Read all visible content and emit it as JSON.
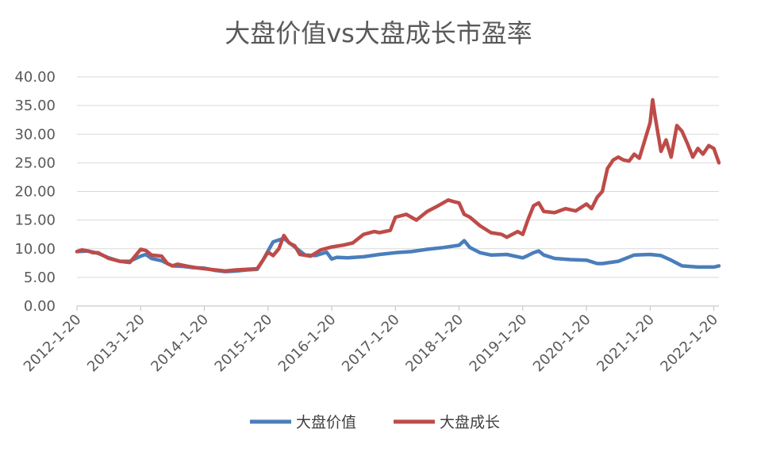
{
  "chart_data": {
    "type": "line",
    "title": "大盘价值vs大盘成长市盈率",
    "xlabel": "",
    "ylabel": "",
    "ylim": [
      0,
      40
    ],
    "yticks": [
      "0.00",
      "5.00",
      "10.00",
      "15.00",
      "20.00",
      "25.00",
      "30.00",
      "35.00",
      "40.00"
    ],
    "xticks": [
      "2012-1-20",
      "2013-1-20",
      "2014-1-20",
      "2015-1-20",
      "2016-1-20",
      "2017-1-20",
      "2018-1-20",
      "2019-1-20",
      "2020-1-20",
      "2021-1-20",
      "2022-1-20"
    ],
    "grid": "horizontal",
    "legend_position": "bottom",
    "series": [
      {
        "name": "大盘价值",
        "color": "#4a7ebb",
        "x": [
          2012.0,
          2012.17,
          2012.33,
          2012.5,
          2012.67,
          2012.83,
          2013.0,
          2013.08,
          2013.17,
          2013.33,
          2013.42,
          2013.5,
          2013.67,
          2013.83,
          2014.0,
          2014.17,
          2014.33,
          2014.5,
          2014.67,
          2014.83,
          2014.92,
          2015.0,
          2015.08,
          2015.25,
          2015.42,
          2015.58,
          2015.75,
          2015.92,
          2016.0,
          2016.08,
          2016.25,
          2016.5,
          2016.75,
          2017.0,
          2017.25,
          2017.5,
          2017.75,
          2018.0,
          2018.08,
          2018.17,
          2018.33,
          2018.5,
          2018.75,
          2019.0,
          2019.08,
          2019.17,
          2019.25,
          2019.33,
          2019.5,
          2019.75,
          2020.0,
          2020.17,
          2020.25,
          2020.5,
          2020.75,
          2021.0,
          2021.17,
          2021.33,
          2021.5,
          2021.75,
          2022.0,
          2022.08
        ],
        "values": [
          9.5,
          9.6,
          9.2,
          8.4,
          7.8,
          7.8,
          8.7,
          9.0,
          8.3,
          7.9,
          7.4,
          7.0,
          6.9,
          6.7,
          6.6,
          6.2,
          6.0,
          6.1,
          6.3,
          6.4,
          8.0,
          9.6,
          11.2,
          11.8,
          10.3,
          8.9,
          8.8,
          9.4,
          8.2,
          8.5,
          8.4,
          8.6,
          9.0,
          9.3,
          9.5,
          9.9,
          10.2,
          10.6,
          11.4,
          10.2,
          9.3,
          8.9,
          9.0,
          8.4,
          8.8,
          9.3,
          9.6,
          8.9,
          8.3,
          8.1,
          8.0,
          7.4,
          7.4,
          7.8,
          8.9,
          9.0,
          8.8,
          8.0,
          7.0,
          6.8,
          6.8,
          7.0
        ]
      },
      {
        "name": "大盘成长",
        "color": "#be4b48",
        "x": [
          2012.0,
          2012.08,
          2012.17,
          2012.25,
          2012.33,
          2012.5,
          2012.67,
          2012.83,
          2013.0,
          2013.08,
          2013.17,
          2013.33,
          2013.42,
          2013.5,
          2013.58,
          2013.75,
          2013.92,
          2014.0,
          2014.17,
          2014.33,
          2014.5,
          2014.67,
          2014.83,
          2014.92,
          2015.0,
          2015.08,
          2015.17,
          2015.25,
          2015.33,
          2015.42,
          2015.5,
          2015.67,
          2015.83,
          2016.0,
          2016.17,
          2016.33,
          2016.5,
          2016.67,
          2016.75,
          2016.92,
          2017.0,
          2017.17,
          2017.33,
          2017.5,
          2017.67,
          2017.83,
          2017.92,
          2018.0,
          2018.08,
          2018.17,
          2018.33,
          2018.5,
          2018.67,
          2018.75,
          2018.92,
          2019.0,
          2019.08,
          2019.17,
          2019.25,
          2019.33,
          2019.5,
          2019.67,
          2019.83,
          2020.0,
          2020.08,
          2020.17,
          2020.25,
          2020.33,
          2020.42,
          2020.5,
          2020.58,
          2020.67,
          2020.75,
          2020.83,
          2021.0,
          2021.04,
          2021.08,
          2021.17,
          2021.25,
          2021.33,
          2021.42,
          2021.5,
          2021.58,
          2021.67,
          2021.75,
          2021.83,
          2021.92,
          2022.0,
          2022.08
        ],
        "values": [
          9.5,
          9.8,
          9.6,
          9.3,
          9.3,
          8.3,
          7.8,
          7.6,
          9.9,
          9.7,
          8.9,
          8.7,
          7.4,
          7.0,
          7.3,
          6.9,
          6.6,
          6.5,
          6.3,
          6.1,
          6.3,
          6.4,
          6.5,
          8.0,
          9.4,
          8.8,
          10.0,
          12.3,
          11.0,
          10.5,
          9.0,
          8.7,
          9.8,
          10.3,
          10.6,
          11.0,
          12.5,
          13.0,
          12.8,
          13.2,
          15.5,
          16.0,
          15.0,
          16.5,
          17.5,
          18.5,
          18.2,
          18.0,
          16.0,
          15.5,
          14.0,
          12.8,
          12.5,
          12.0,
          13.0,
          12.5,
          15.0,
          17.5,
          18.0,
          16.5,
          16.3,
          17.0,
          16.6,
          17.8,
          17.0,
          19.0,
          20.0,
          24.0,
          25.5,
          26.0,
          25.5,
          25.3,
          26.5,
          25.8,
          32.0,
          36.0,
          33.0,
          27.0,
          29.0,
          26.0,
          31.5,
          30.5,
          28.5,
          26.0,
          27.5,
          26.5,
          28.0,
          27.5,
          25.0
        ]
      }
    ]
  }
}
